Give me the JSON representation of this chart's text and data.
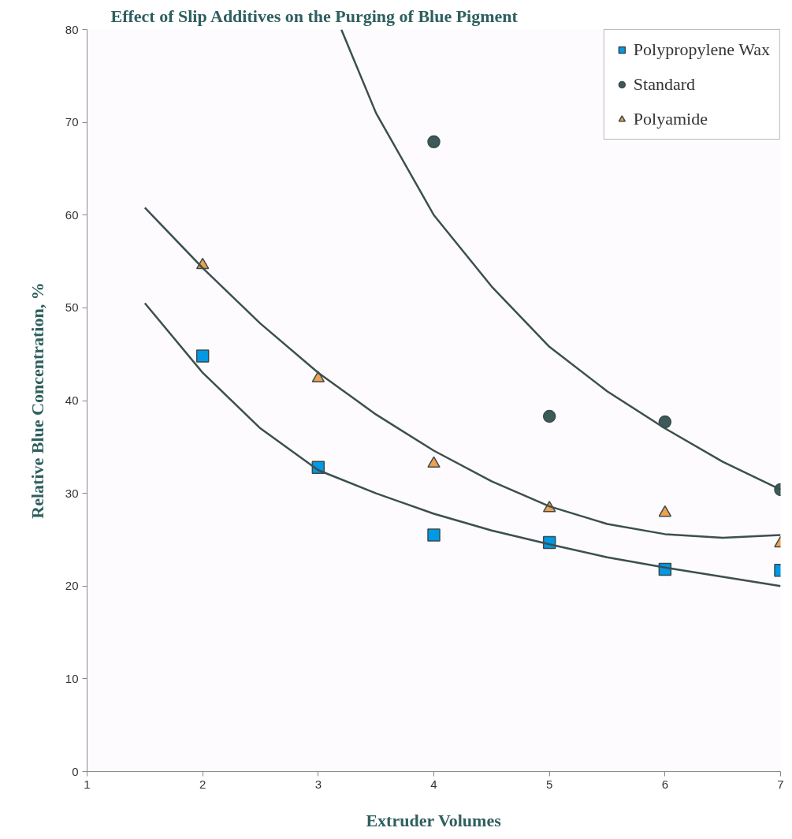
{
  "chart_data": {
    "type": "scatter",
    "title": "Effect of Slip Additives on the Purging of Blue Pigment",
    "xlabel": "Extruder Volumes",
    "ylabel": "Relative Blue Concentration, %",
    "x": [
      2,
      3,
      4,
      5,
      6,
      7
    ],
    "series": [
      {
        "name": "Polypropylene Wax",
        "color": "#0099e6",
        "marker": "square",
        "values": [
          44.8,
          32.8,
          25.5,
          24.7,
          21.8,
          21.7
        ]
      },
      {
        "name": "Standard",
        "color": "#3c5a5a",
        "marker": "circle",
        "values": [
          null,
          null,
          67.9,
          38.3,
          37.7,
          30.4
        ]
      },
      {
        "name": "Polyamide",
        "color": "#f0a050",
        "marker": "triangle",
        "values": [
          54.6,
          42.4,
          33.2,
          28.4,
          27.9,
          24.6
        ]
      },
      {
        "type": "line",
        "color": "#3c4f4f",
        "x": [
          1.5,
          2,
          2.5,
          3,
          3.5,
          4,
          4.5,
          5,
          5.5,
          6,
          6.5,
          7
        ],
        "values": [
          50.5,
          43,
          37,
          32.5,
          30,
          27.8,
          26,
          24.5,
          23.1,
          22,
          21,
          20
        ]
      },
      {
        "type": "line",
        "color": "#3c4f4f",
        "x": [
          3.2,
          3.5,
          4,
          4.5,
          5,
          5.5,
          6,
          6.5,
          7
        ],
        "values": [
          80,
          71,
          60,
          52.3,
          45.8,
          41,
          37,
          33.4,
          30.4
        ]
      },
      {
        "type": "line",
        "color": "#3c4f4f",
        "x": [
          1.5,
          2,
          2.5,
          3,
          3.5,
          4,
          4.5,
          5,
          5.5,
          6,
          6.5,
          7
        ],
        "values": [
          60.8,
          54.3,
          48.3,
          43,
          38.5,
          34.6,
          31.3,
          28.6,
          26.7,
          25.6,
          25.2,
          25.5
        ]
      }
    ],
    "xlim": [
      1,
      7
    ],
    "ylim": [
      0,
      80
    ],
    "xticks": [
      1,
      2,
      3,
      4,
      5,
      6,
      7
    ],
    "yticks": [
      0,
      10,
      20,
      30,
      40,
      50,
      60,
      70,
      80
    ],
    "grid": false,
    "legend": "top right"
  }
}
